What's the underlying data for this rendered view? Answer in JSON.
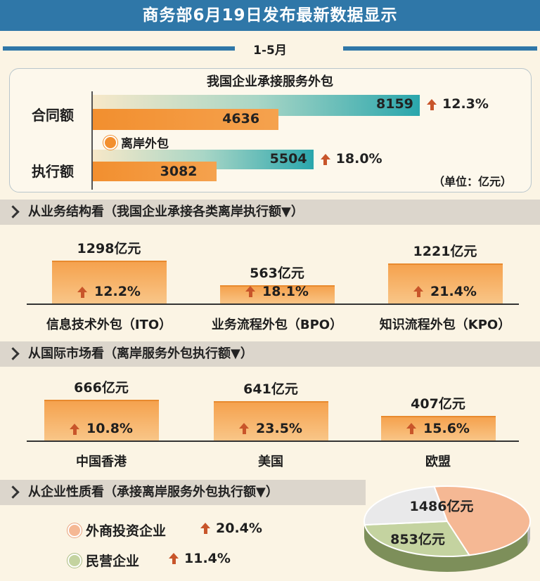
{
  "title": "商务部6月19日发布最新数据显示",
  "period": "1-5月",
  "chart_data": [
    {
      "type": "bar",
      "title": "我国企业承接服务外包",
      "categories": [
        "合同额",
        "执行额"
      ],
      "series": [
        {
          "name": "",
          "values": [
            8159,
            5504
          ],
          "growth": [
            "12.3%",
            "18.0%"
          ]
        },
        {
          "name": "离岸外包",
          "values": [
            4636,
            3082
          ]
        }
      ],
      "unit_note": "（单位：亿元）",
      "xlim": [
        0,
        8500
      ]
    },
    {
      "type": "bar",
      "title": "从业务结构看（我国企业承接各类离岸执行额▼）",
      "categories": [
        "信息技术外包（ITO）",
        "业务流程外包（BPO）",
        "知识流程外包（KPO）"
      ],
      "values": [
        1298,
        563,
        1221
      ],
      "value_labels": [
        "1298亿元",
        "563亿元",
        "1221亿元"
      ],
      "growth": [
        "12.2%",
        "18.1%",
        "21.4%"
      ],
      "ylim": [
        0,
        1400
      ]
    },
    {
      "type": "bar",
      "title": "从国际市场看（离岸服务外包执行额▼）",
      "categories": [
        "中国香港",
        "美国",
        "欧盟"
      ],
      "values": [
        666,
        641,
        407
      ],
      "value_labels": [
        "666亿元",
        "641亿元",
        "407亿元"
      ],
      "growth": [
        "10.8%",
        "23.5%",
        "15.6%"
      ],
      "ylim": [
        0,
        720
      ]
    },
    {
      "type": "pie",
      "title": "从企业性质看（承接离岸服务外包执行额▼）",
      "slices": [
        {
          "name": "外商投资企业",
          "value": 1486,
          "label": "1486亿元",
          "growth": "20.4%",
          "color": "#f5b894"
        },
        {
          "name": "民营企业",
          "value": 853,
          "label": "853亿元",
          "growth": "11.4%",
          "color": "#c4d3a0"
        },
        {
          "name": "",
          "value": 743,
          "color": "#e9e9ea"
        }
      ]
    }
  ],
  "colors": {
    "accent_blue": "#2f77a8",
    "orange": "#f28f2f",
    "teal": "#2aa6ac",
    "arrow_red": "#c8552a"
  }
}
